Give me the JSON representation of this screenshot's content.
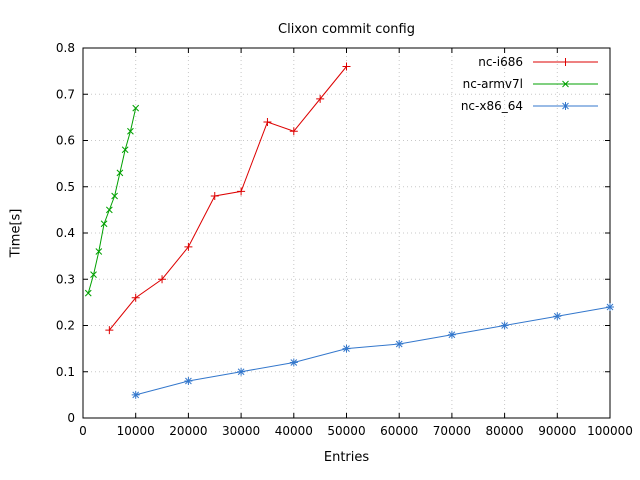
{
  "chart_data": {
    "type": "line",
    "title": "Clixon commit config",
    "xlabel": "Entries",
    "ylabel": "Time[s]",
    "xlim": [
      0,
      100000
    ],
    "ylim": [
      0,
      0.8
    ],
    "xticks": [
      0,
      10000,
      20000,
      30000,
      40000,
      50000,
      60000,
      70000,
      80000,
      90000,
      100000
    ],
    "xtick_labels": [
      "0",
      "10000",
      "20000",
      "30000",
      "40000",
      "50000",
      "60000",
      "70000",
      "80000",
      "90000",
      "100000"
    ],
    "yticks": [
      0,
      0.1,
      0.2,
      0.3,
      0.4,
      0.5,
      0.6,
      0.7,
      0.8
    ],
    "ytick_labels": [
      "0",
      "0.1",
      "0.2",
      "0.3",
      "0.4",
      "0.5",
      "0.6",
      "0.7",
      "0.8"
    ],
    "grid": true,
    "grid_color": "#c8c8c8",
    "border_color": "#000000",
    "background": "#ffffff",
    "legend_position": "top-right-inside",
    "series": [
      {
        "name": "nc-i686",
        "color": "#dd0000",
        "marker": "plus",
        "x": [
          5000,
          10000,
          15000,
          20000,
          25000,
          30000,
          35000,
          40000,
          45000,
          50000
        ],
        "y": [
          0.19,
          0.26,
          0.3,
          0.37,
          0.48,
          0.49,
          0.64,
          0.62,
          0.69,
          0.76
        ]
      },
      {
        "name": "nc-armv7l",
        "color": "#00a000",
        "marker": "cross",
        "x": [
          1000,
          2000,
          3000,
          4000,
          5000,
          6000,
          7000,
          8000,
          9000,
          10000
        ],
        "y": [
          0.27,
          0.31,
          0.36,
          0.42,
          0.45,
          0.48,
          0.53,
          0.58,
          0.62,
          0.67
        ]
      },
      {
        "name": "nc-x86_64",
        "color": "#3377cc",
        "marker": "star",
        "x": [
          10000,
          20000,
          30000,
          40000,
          50000,
          60000,
          70000,
          80000,
          90000,
          100000
        ],
        "y": [
          0.05,
          0.08,
          0.1,
          0.12,
          0.15,
          0.16,
          0.18,
          0.2,
          0.22,
          0.24
        ]
      }
    ]
  }
}
